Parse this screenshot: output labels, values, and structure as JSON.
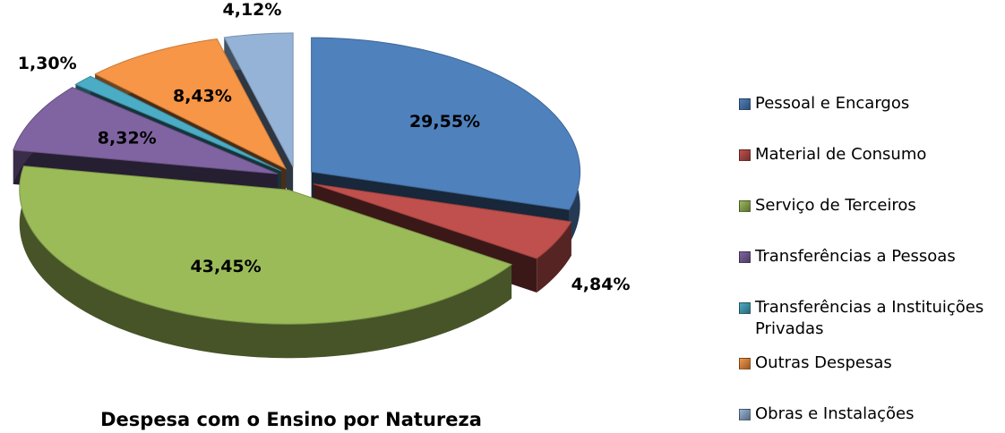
{
  "chart_data": {
    "type": "pie",
    "title": "Despesa com o Ensino por Natureza",
    "categories": [
      "Pessoal e Encargos",
      "Material de Consumo",
      "Serviço de Terceiros",
      "Transferências a Pessoas",
      "Transferências a Instituições Privadas",
      "Outras Despesas",
      "Obras e Instalações"
    ],
    "values": [
      29.55,
      4.84,
      43.45,
      8.32,
      1.3,
      8.43,
      4.12
    ],
    "value_labels": [
      "29,55%",
      "4,84%",
      "43,45%",
      "8,32%",
      "1,30%",
      "8,43%",
      "4,12%"
    ],
    "colors": [
      "#4f81bd",
      "#c0504d",
      "#9bbb59",
      "#8064a2",
      "#4bacc6",
      "#f79646",
      "#95b3d7"
    ],
    "legend": "right"
  }
}
